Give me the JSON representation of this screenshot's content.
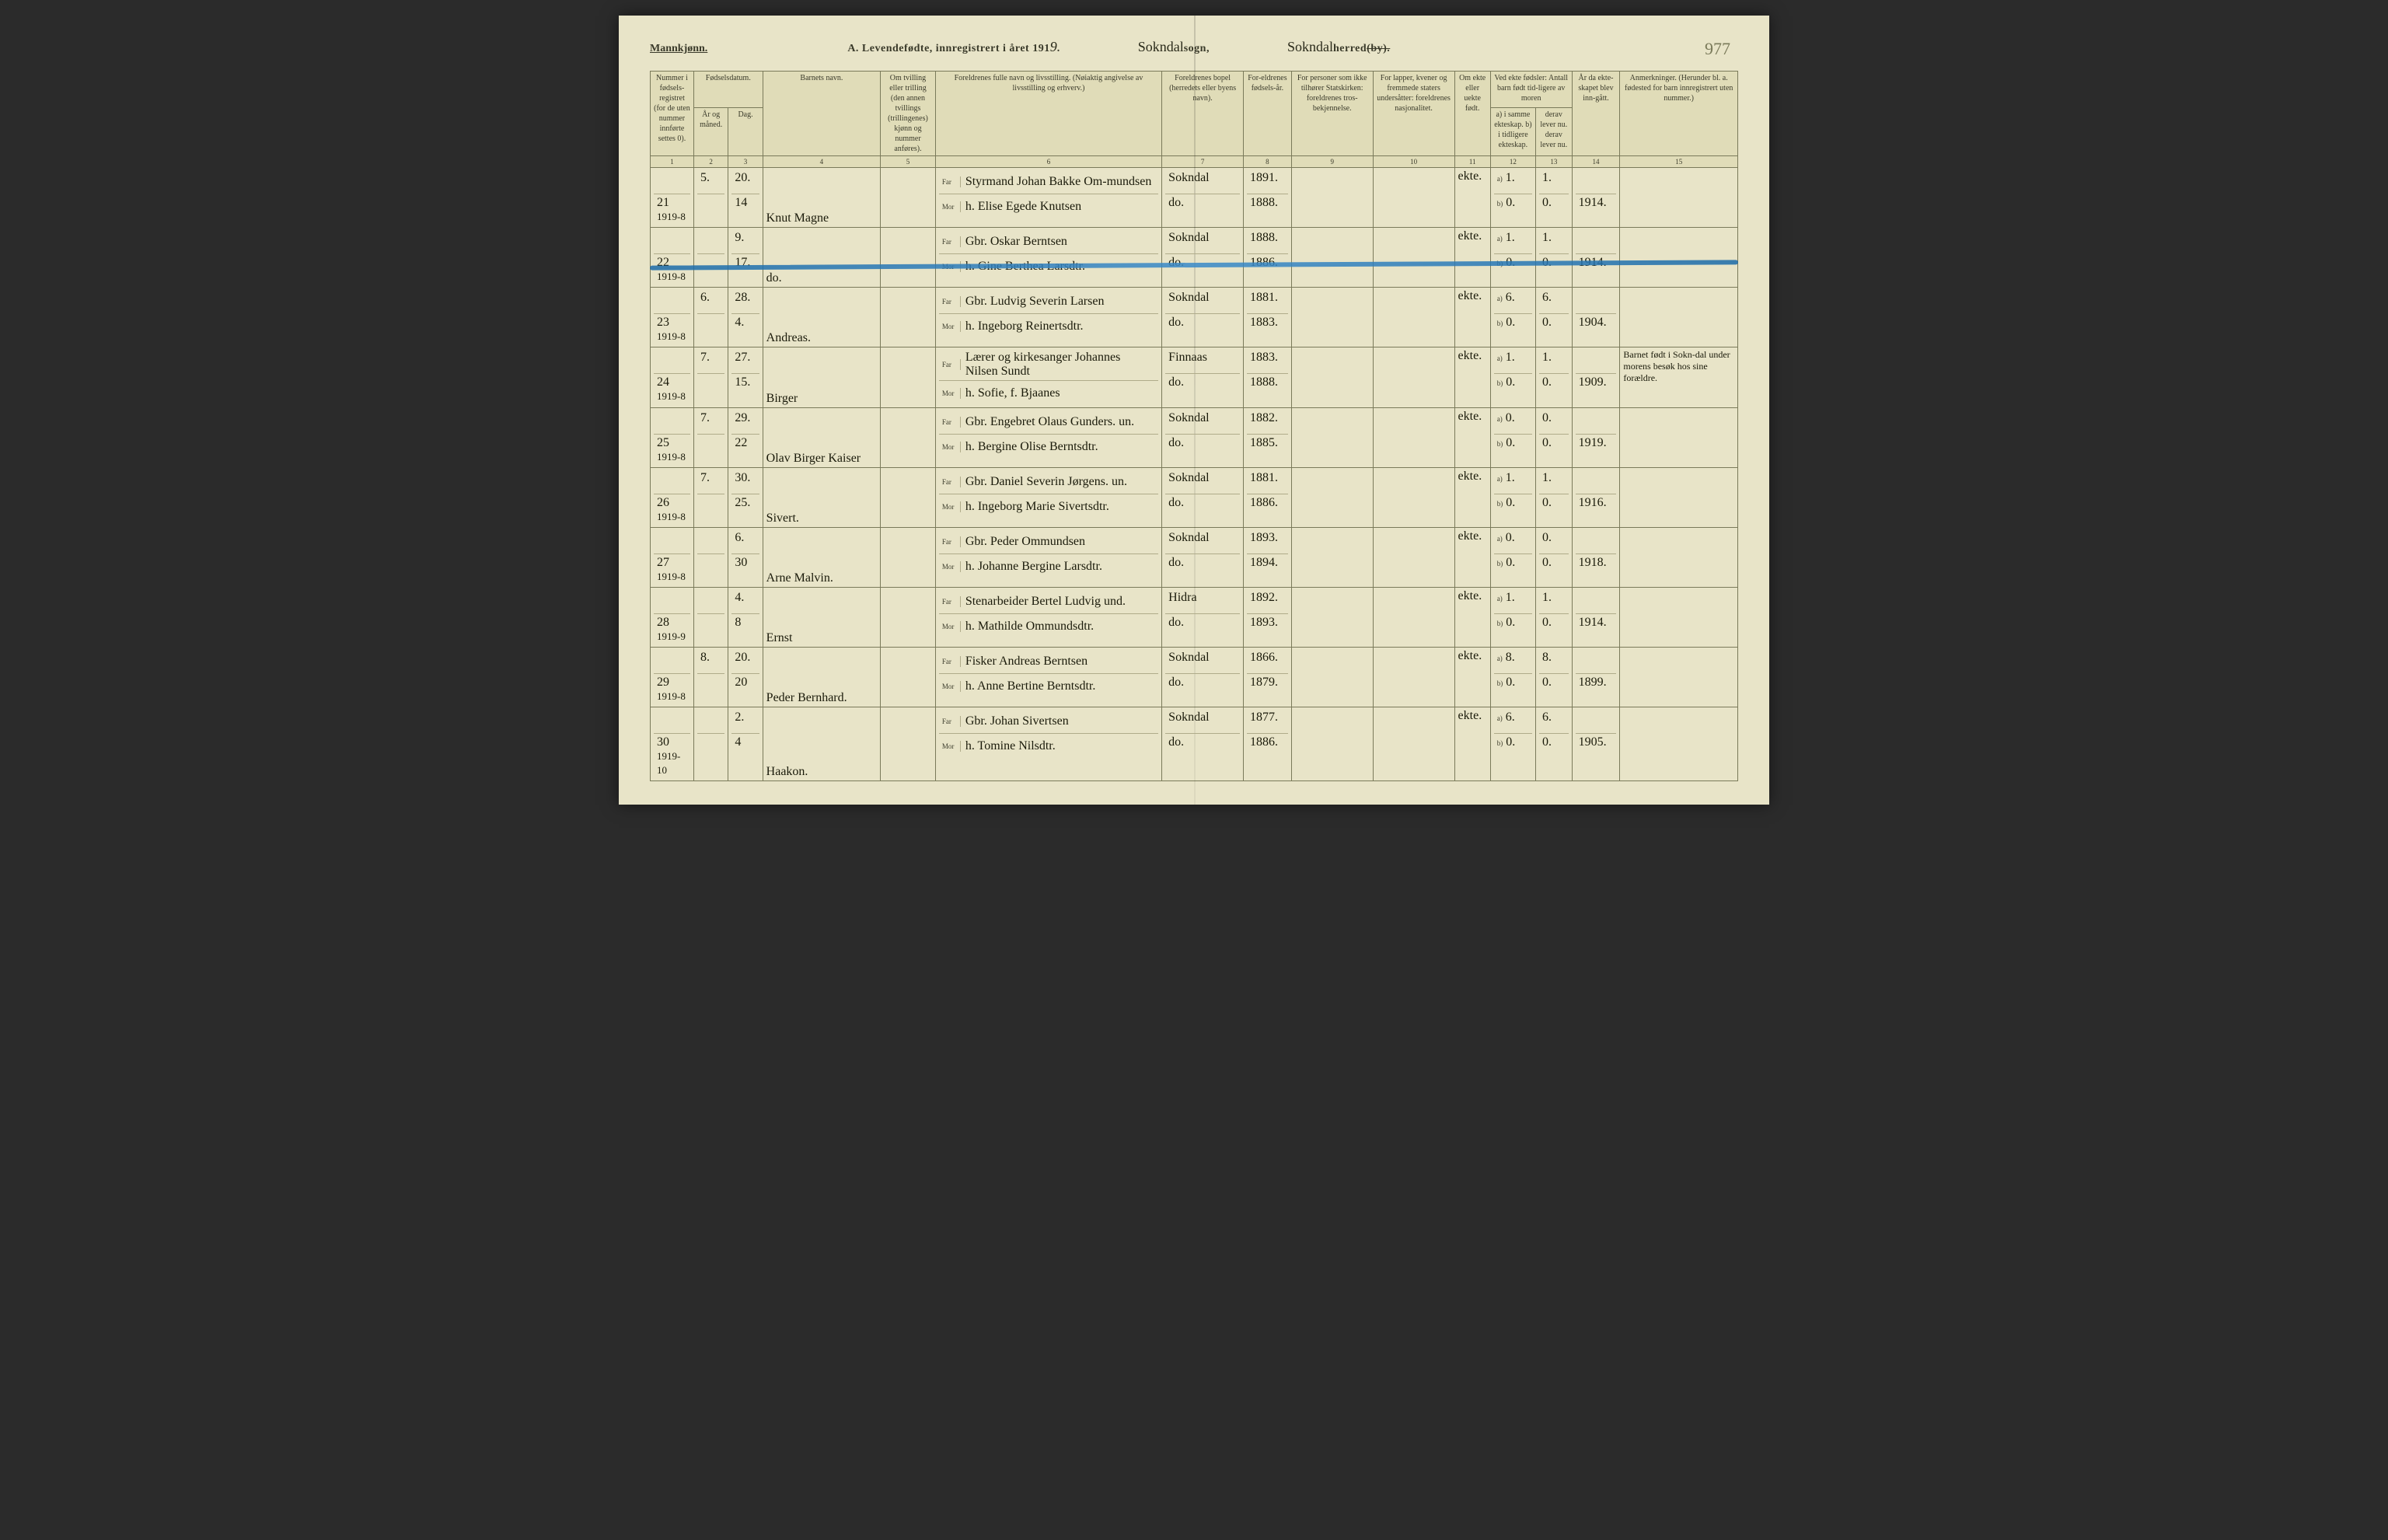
{
  "header": {
    "gender": "Mannkjønn.",
    "title_prefix": "A.  Levendefødte, innregistrert i året 191",
    "year_suffix": "9",
    "sogn_handwritten": "Sokndal",
    "sogn_label": "sogn,",
    "herred_handwritten": "Sokndal",
    "herred_label": "herred",
    "herred_strike": "(by).",
    "page_number": "977"
  },
  "columns": {
    "c1": "Nummer i fødsels-registret (for de uten nummer innførte settes 0).",
    "c2a": "Fødselsdatum.",
    "c2": "År og måned.",
    "c3": "Dag.",
    "c4": "Barnets navn.",
    "c5": "Om tvilling eller trilling (den annen tvillings (trillingenes) kjønn og nummer anføres).",
    "c6": "Foreldrenes fulle navn og livsstilling. (Nøiaktig angivelse av livsstilling og erhverv.)",
    "c7": "Foreldrenes bopel (herredets eller byens navn).",
    "c8": "For-eldrenes fødsels-år.",
    "c9": "For personer som ikke tilhører Statskirken: foreldrenes tros-bekjennelse.",
    "c10": "For lapper, kvener og fremmede staters undersåtter: foreldrenes nasjonalitet.",
    "c11": "Om ekte eller uekte født.",
    "c12a": "Ved ekte fødsler: Antall barn født tid-ligere av moren",
    "c12": "a) i samme ekteskap. b) i tidligere ekteskap.",
    "c13": "derav lever nu. derav lever nu.",
    "c14": "År da ekte-skapet blev inn-gått.",
    "c15": "Anmerkninger. (Herunder bl. a. fødested for barn innregistrert uten nummer.)",
    "far": "Far",
    "mor": "Mor"
  },
  "colnums": [
    "1",
    "2",
    "3",
    "4",
    "5",
    "6",
    "7",
    "8",
    "9",
    "10",
    "11",
    "12",
    "13",
    "14",
    "15"
  ],
  "rows": [
    {
      "num": "21",
      "reg": "1919-8",
      "year_mo": "5.",
      "day_top": "20.",
      "day_bot": "14",
      "name": "Knut Magne",
      "far": "Styrmand Johan Bakke Om-mundsen",
      "mor": "h. Elise Egede Knutsen",
      "bopel_f": "Sokndal",
      "bopel_m": "do.",
      "fyr_f": "1891.",
      "fyr_m": "1888.",
      "ekte": "ekte.",
      "a12": "1.",
      "a13": "1.",
      "b12": "0.",
      "b13": "0.",
      "aar": "1914.",
      "anm": ""
    },
    {
      "num": "22",
      "reg": "1919-8",
      "year_mo": "",
      "day_top": "9.",
      "day_bot": "17.",
      "name": "do.",
      "far": "Gbr. Oskar Berntsen",
      "mor": "h. Gine Berthea Larsdtr.",
      "bopel_f": "Sokndal",
      "bopel_m": "do.",
      "fyr_f": "1888.",
      "fyr_m": "1886.",
      "ekte": "ekte.",
      "a12": "1.",
      "a13": "1.",
      "b12": "0.",
      "b13": "0.",
      "aar": "1914.",
      "anm": ""
    },
    {
      "num": "23",
      "reg": "1919-8",
      "year_mo": "6.",
      "day_top": "28.",
      "day_bot": "4.",
      "name": "Andreas.",
      "far": "Gbr. Ludvig Severin Larsen",
      "mor": "h. Ingeborg Reinertsdtr.",
      "bopel_f": "Sokndal",
      "bopel_m": "do.",
      "fyr_f": "1881.",
      "fyr_m": "1883.",
      "ekte": "ekte.",
      "a12": "6.",
      "a13": "6.",
      "b12": "0.",
      "b13": "0.",
      "aar": "1904.",
      "anm": ""
    },
    {
      "num": "24",
      "reg": "1919-8",
      "year_mo": "7.",
      "day_top": "27.",
      "day_bot": "15.",
      "name": "Birger",
      "far": "Lærer og kirkesanger Johannes Nilsen Sundt",
      "mor": "h. Sofie, f. Bjaanes",
      "bopel_f": "Finnaas",
      "bopel_m": "do.",
      "fyr_f": "1883.",
      "fyr_m": "1888.",
      "ekte": "ekte.",
      "a12": "1.",
      "a13": "1.",
      "b12": "0.",
      "b13": "0.",
      "aar": "1909.",
      "anm": "Barnet født i Sokn-dal under morens besøk hos sine forældre."
    },
    {
      "num": "25",
      "reg": "1919-8",
      "year_mo": "7.",
      "day_top": "29.",
      "day_bot": "22",
      "name": "Olav Birger Kaiser",
      "far": "Gbr. Engebret Olaus Gunders. un.",
      "mor": "h. Bergine Olise Berntsdtr.",
      "bopel_f": "Sokndal",
      "bopel_m": "do.",
      "fyr_f": "1882.",
      "fyr_m": "1885.",
      "ekte": "ekte.",
      "a12": "0.",
      "a13": "0.",
      "b12": "0.",
      "b13": "0.",
      "aar": "1919.",
      "anm": ""
    },
    {
      "num": "26",
      "reg": "1919-8",
      "year_mo": "7.",
      "day_top": "30.",
      "day_bot": "25.",
      "name": "Sivert.",
      "far": "Gbr. Daniel Severin Jørgens. un.",
      "mor": "h. Ingeborg Marie Sivertsdtr.",
      "bopel_f": "Sokndal",
      "bopel_m": "do.",
      "fyr_f": "1881.",
      "fyr_m": "1886.",
      "ekte": "ekte.",
      "a12": "1.",
      "a13": "1.",
      "b12": "0.",
      "b13": "0.",
      "aar": "1916.",
      "anm": ""
    },
    {
      "num": "27",
      "reg": "1919-8",
      "year_mo": "",
      "day_top": "6.",
      "day_bot": "30",
      "name": "Arne Malvin.",
      "far": "Gbr. Peder Ommundsen",
      "mor": "h. Johanne Bergine Larsdtr.",
      "bopel_f": "Sokndal",
      "bopel_m": "do.",
      "fyr_f": "1893.",
      "fyr_m": "1894.",
      "ekte": "ekte.",
      "a12": "0.",
      "a13": "0.",
      "b12": "0.",
      "b13": "0.",
      "aar": "1918.",
      "anm": ""
    },
    {
      "num": "28",
      "reg": "1919-9",
      "year_mo": "",
      "day_top": "4.",
      "day_bot": "8",
      "name": "Ernst",
      "far": "Stenarbeider Bertel Ludvig und.",
      "mor": "h. Mathilde Ommundsdtr.",
      "bopel_f": "Hidra",
      "bopel_m": "do.",
      "fyr_f": "1892.",
      "fyr_m": "1893.",
      "ekte": "ekte.",
      "a12": "1.",
      "a13": "1.",
      "b12": "0.",
      "b13": "0.",
      "aar": "1914.",
      "anm": ""
    },
    {
      "num": "29",
      "reg": "1919-8",
      "year_mo": "8.",
      "day_top": "20.",
      "day_bot": "20",
      "name": "Peder Bernhard.",
      "far": "Fisker Andreas Berntsen",
      "mor": "h. Anne Bertine Berntsdtr.",
      "bopel_f": "Sokndal",
      "bopel_m": "do.",
      "fyr_f": "1866.",
      "fyr_m": "1879.",
      "ekte": "ekte.",
      "a12": "8.",
      "a13": "8.",
      "b12": "0.",
      "b13": "0.",
      "aar": "1899.",
      "anm": ""
    },
    {
      "num": "30",
      "reg": "1919-10",
      "year_mo": "",
      "day_top": "2.",
      "day_bot": "4",
      "name": "Haakon.",
      "far": "Gbr. Johan Sivertsen",
      "mor": "h. Tomine Nilsdtr.",
      "bopel_f": "Sokndal",
      "bopel_m": "do.",
      "fyr_f": "1877.",
      "fyr_m": "1886.",
      "ekte": "ekte.",
      "a12": "6.",
      "a13": "6.",
      "b12": "0.",
      "b13": "0.",
      "aar": "1905.",
      "anm": ""
    }
  ]
}
